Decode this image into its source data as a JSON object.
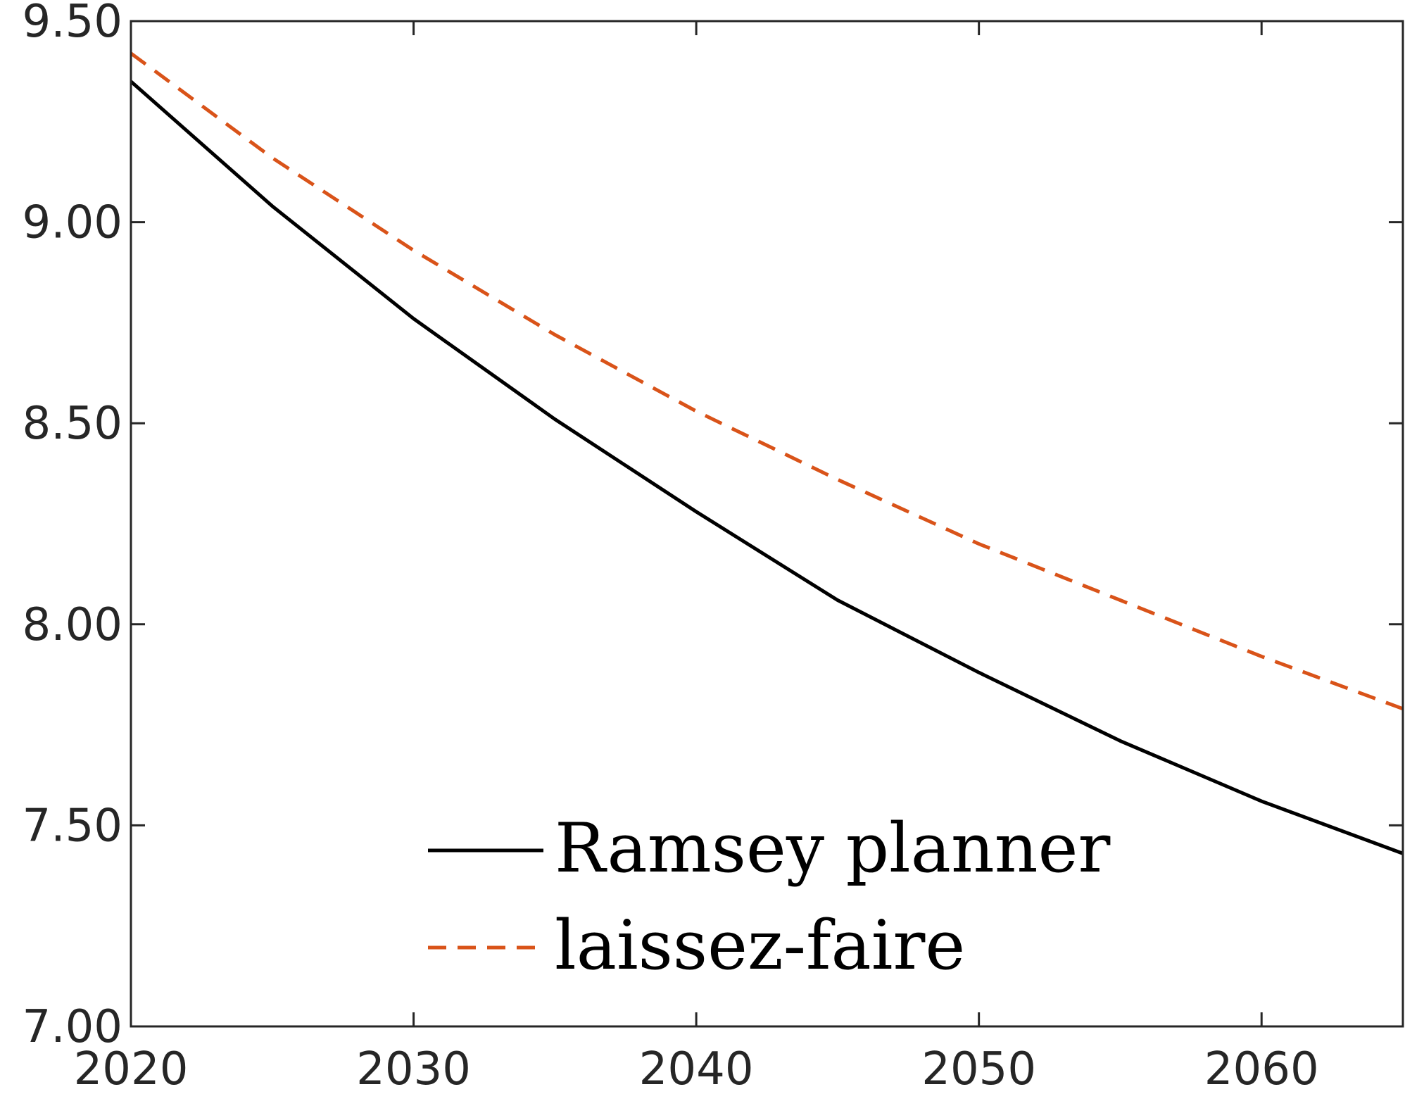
{
  "chart_data": {
    "type": "line",
    "title": "",
    "xlabel": "",
    "ylabel": "",
    "xlim": [
      2020,
      2065
    ],
    "ylim": [
      7.0,
      9.5
    ],
    "xticks": [
      2020,
      2030,
      2040,
      2050,
      2060
    ],
    "yticks": [
      "7.00",
      "7.50",
      "8.00",
      "8.50",
      "9.00",
      "9.50"
    ],
    "grid": false,
    "legend": {
      "placement": "bottom-center"
    },
    "x": [
      2020,
      2025,
      2030,
      2035,
      2040,
      2045,
      2050,
      2055,
      2060,
      2065
    ],
    "series": [
      {
        "name": "Ramsey planner",
        "style": "solid",
        "color": "#000000",
        "values": [
          9.35,
          9.04,
          8.76,
          8.51,
          8.28,
          8.06,
          7.88,
          7.71,
          7.56,
          7.43
        ]
      },
      {
        "name": "laissez-faire",
        "style": "dashed",
        "color": "#D95319",
        "values": [
          9.42,
          9.16,
          8.93,
          8.72,
          8.53,
          8.36,
          8.2,
          8.06,
          7.92,
          7.79
        ]
      }
    ]
  }
}
